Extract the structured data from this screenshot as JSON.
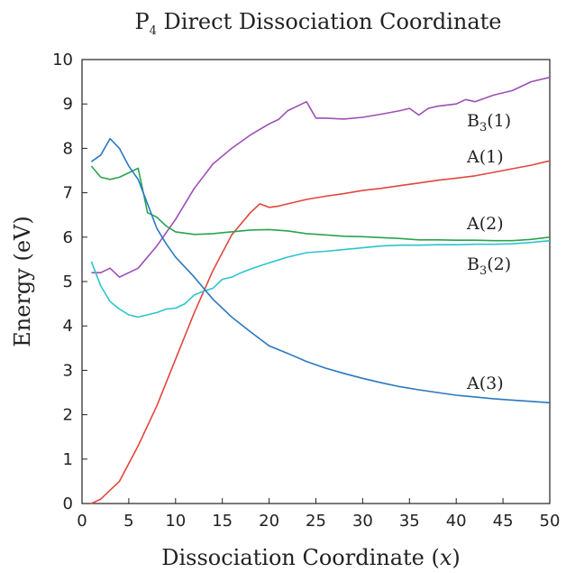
{
  "chart_data": {
    "type": "line",
    "title": "P",
    "title_subscript": "4",
    "title_rest": " Direct Dissociation Coordinate",
    "xlabel": "Dissociation Coordinate (",
    "xlabel_var": "x",
    "xlabel_close": ")",
    "ylabel": "Energy (eV)",
    "xlim": [
      0,
      50
    ],
    "ylim": [
      0,
      10
    ],
    "x_ticks": [
      "0",
      "5",
      "10",
      "15",
      "20",
      "25",
      "30",
      "35",
      "40",
      "45",
      "50"
    ],
    "y_ticks": [
      "0",
      "1",
      "2",
      "3",
      "4",
      "5",
      "6",
      "7",
      "8",
      "9",
      "10"
    ],
    "grid": false,
    "legend": "inline labels",
    "series": [
      {
        "name": "B3(1)",
        "label_main": "B",
        "label_sub": "3",
        "label_rest": "(1)",
        "color": "#9e4fb5",
        "x": [
          1,
          2,
          3,
          4,
          6,
          8,
          10,
          12,
          14,
          16,
          18,
          20,
          21,
          22,
          23,
          24,
          25,
          26,
          28,
          30,
          32,
          34,
          35,
          36,
          37,
          38,
          40,
          41,
          42,
          44,
          46,
          47,
          48,
          50
        ],
        "y": [
          5.2,
          5.2,
          5.3,
          5.1,
          5.3,
          5.8,
          6.4,
          7.1,
          7.65,
          8.0,
          8.3,
          8.55,
          8.65,
          8.85,
          8.95,
          9.05,
          8.68,
          8.68,
          8.66,
          8.7,
          8.77,
          8.85,
          8.9,
          8.75,
          8.9,
          8.95,
          9.0,
          9.1,
          9.05,
          9.2,
          9.3,
          9.4,
          9.5,
          9.6
        ]
      },
      {
        "name": "A(1)",
        "label_main": "A",
        "label_sub": "",
        "label_rest": "(1)",
        "color": "#e0473e",
        "x": [
          1,
          2,
          4,
          6,
          8,
          10,
          12,
          14,
          16,
          18,
          19,
          20,
          21,
          22,
          24,
          26,
          28,
          30,
          32,
          34,
          36,
          38,
          40,
          42,
          44,
          46,
          48,
          50
        ],
        "y": [
          0.0,
          0.1,
          0.5,
          1.3,
          2.2,
          3.25,
          4.3,
          5.25,
          6.05,
          6.55,
          6.75,
          6.67,
          6.7,
          6.75,
          6.85,
          6.92,
          6.98,
          7.05,
          7.1,
          7.16,
          7.22,
          7.28,
          7.33,
          7.38,
          7.46,
          7.54,
          7.62,
          7.72
        ]
      },
      {
        "name": "A(2)",
        "label_main": "A",
        "label_sub": "",
        "label_rest": "(2)",
        "color": "#28a550",
        "x": [
          1,
          2,
          3,
          4,
          5,
          6,
          7,
          8,
          9,
          10,
          12,
          14,
          16,
          18,
          20,
          22,
          24,
          26,
          28,
          30,
          32,
          34,
          36,
          38,
          40,
          42,
          44,
          46,
          48,
          50
        ],
        "y": [
          7.6,
          7.35,
          7.3,
          7.35,
          7.45,
          7.55,
          6.55,
          6.45,
          6.25,
          6.12,
          6.06,
          6.08,
          6.12,
          6.16,
          6.17,
          6.14,
          6.08,
          6.05,
          6.02,
          6.01,
          5.99,
          5.97,
          5.94,
          5.94,
          5.93,
          5.93,
          5.92,
          5.92,
          5.95,
          6.0
        ]
      },
      {
        "name": "B3(2)",
        "label_main": "B",
        "label_sub": "3",
        "label_rest": "(2)",
        "color": "#2ec4cc",
        "x": [
          1,
          2,
          3,
          4,
          5,
          6,
          7,
          8,
          9,
          10,
          11,
          12,
          13,
          14,
          15,
          16,
          17,
          18,
          19,
          20,
          22,
          24,
          26,
          28,
          30,
          32,
          34,
          36,
          38,
          40,
          42,
          44,
          46,
          48,
          50
        ],
        "y": [
          5.45,
          4.9,
          4.55,
          4.38,
          4.25,
          4.2,
          4.25,
          4.3,
          4.38,
          4.4,
          4.5,
          4.7,
          4.78,
          4.85,
          5.05,
          5.1,
          5.2,
          5.28,
          5.35,
          5.42,
          5.55,
          5.65,
          5.68,
          5.72,
          5.76,
          5.8,
          5.82,
          5.82,
          5.83,
          5.83,
          5.84,
          5.84,
          5.85,
          5.88,
          5.92
        ]
      },
      {
        "name": "A(3)",
        "label_main": "A",
        "label_sub": "",
        "label_rest": "(3)",
        "color": "#2b78bf",
        "x": [
          1,
          2,
          3,
          4,
          5,
          6,
          7,
          8,
          9,
          10,
          12,
          14,
          16,
          18,
          20,
          22,
          24,
          26,
          28,
          30,
          32,
          34,
          36,
          38,
          40,
          42,
          44,
          46,
          48,
          50
        ],
        "y": [
          7.7,
          7.85,
          8.22,
          8.0,
          7.6,
          7.3,
          6.75,
          6.2,
          5.85,
          5.55,
          5.1,
          4.6,
          4.2,
          3.87,
          3.55,
          3.38,
          3.2,
          3.05,
          2.93,
          2.82,
          2.72,
          2.63,
          2.56,
          2.5,
          2.44,
          2.4,
          2.36,
          2.33,
          2.3,
          2.27
        ]
      }
    ]
  }
}
